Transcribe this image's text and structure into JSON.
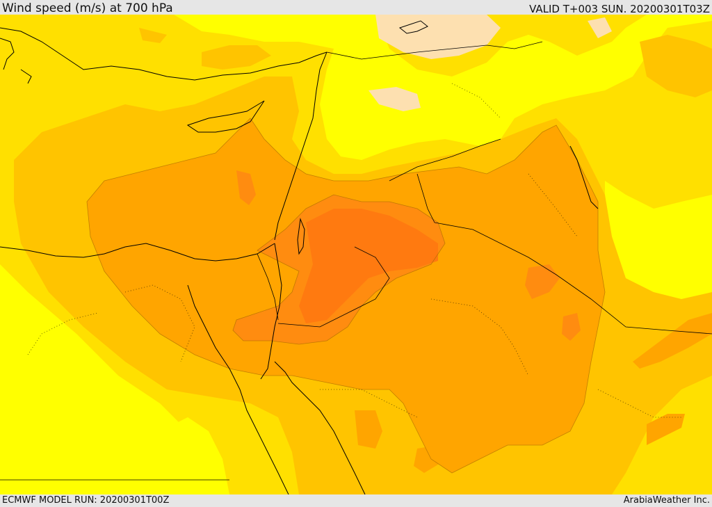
{
  "header": {
    "title": "Wind speed (m/s) at 700 hPa",
    "valid_time": "VALID T+003 SUN. 20200301T03Z"
  },
  "footer": {
    "model_run": "ECMWF MODEL RUN: 20200301T00Z",
    "provider": "ArabiaWeather Inc."
  },
  "map": {
    "colors": {
      "light_yellow": "#ffff00",
      "yellow": "#ffe000",
      "gold": "#ffc400",
      "light_orange": "#ffa500",
      "orange": "#ff8c10",
      "dark_orange": "#ff7a10",
      "pale": "#fde0b0",
      "border": "#000000"
    }
  }
}
